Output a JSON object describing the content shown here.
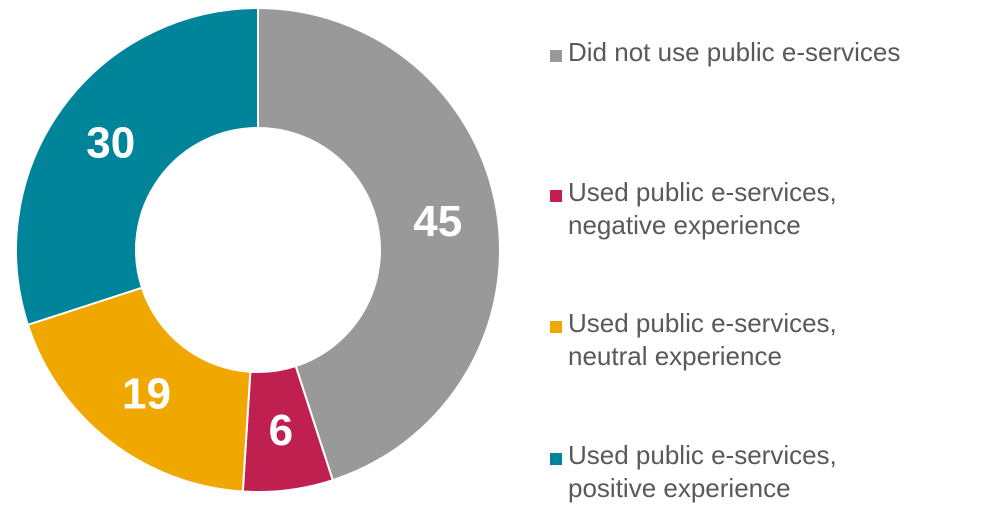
{
  "chart_data": {
    "type": "pie",
    "title": "",
    "categories": [
      "Did not use public e-services",
      "Used public e-services, negative experience",
      "Used public e-services, neutral experience",
      "Used public e-services, positive experience"
    ],
    "values": [
      45,
      6,
      19,
      30
    ],
    "data_labels": [
      "45",
      "6",
      "19",
      "30"
    ],
    "colors": [
      "#999999",
      "#C0204F",
      "#F0A800",
      "#00849A"
    ],
    "donut": true,
    "legend_placement": "right"
  },
  "legend": {
    "items": [
      {
        "lines": [
          "Did not use public e-services"
        ],
        "color": "#999999"
      },
      {
        "lines": [
          "Used public e-services,",
          "negative experience"
        ],
        "color": "#C0204F"
      },
      {
        "lines": [
          "Used public e-services,",
          "neutral experience"
        ],
        "color": "#F0A800"
      },
      {
        "lines": [
          "Used public e-services,",
          "positive experience"
        ],
        "color": "#00849A"
      }
    ]
  }
}
